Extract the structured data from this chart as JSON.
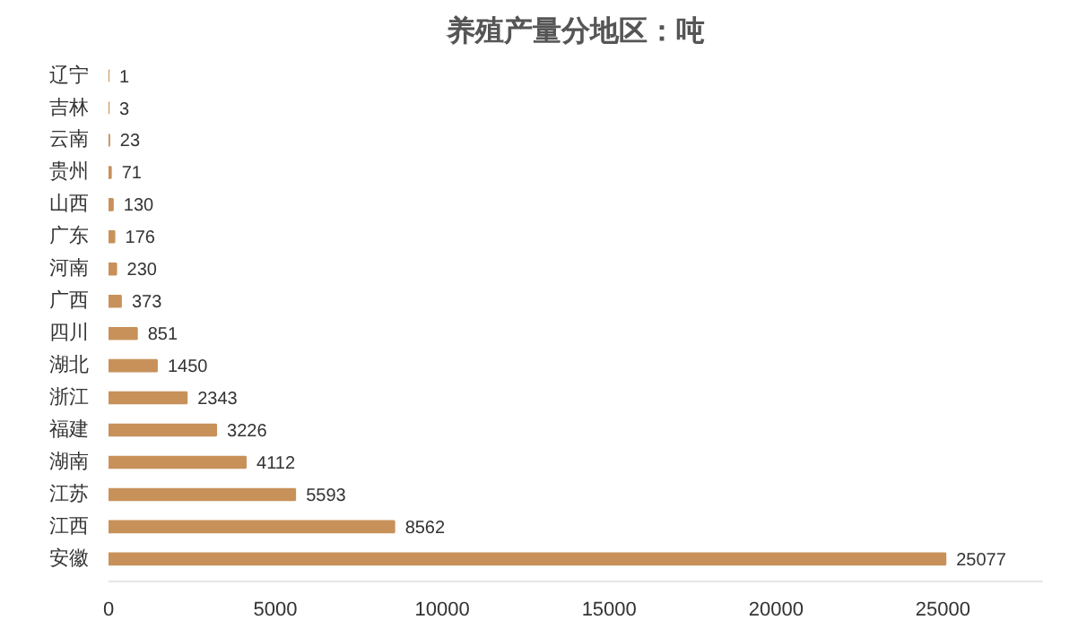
{
  "chart_data": {
    "type": "bar",
    "orientation": "horizontal",
    "title": "养殖产量分地区：吨",
    "categories": [
      "辽宁",
      "吉林",
      "云南",
      "贵州",
      "山西",
      "广东",
      "河南",
      "广西",
      "四川",
      "湖北",
      "浙江",
      "福建",
      "湖南",
      "江苏",
      "江西",
      "安徽"
    ],
    "values": [
      1,
      3,
      23,
      71,
      130,
      176,
      230,
      373,
      851,
      1450,
      2343,
      3226,
      4112,
      5593,
      8562,
      25077
    ],
    "color": "#c8915a",
    "xlim": [
      0,
      28000
    ],
    "xticks": [
      0,
      5000,
      10000,
      15000,
      20000,
      25000
    ],
    "grid": false,
    "data_labels": true
  }
}
